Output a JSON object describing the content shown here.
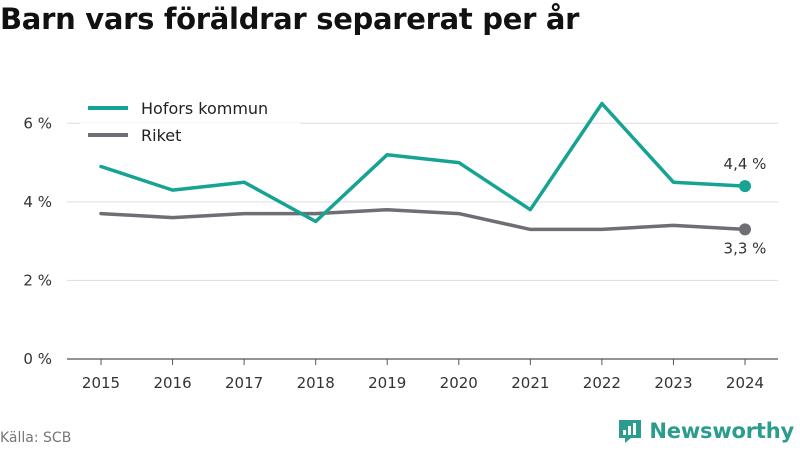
{
  "title": "Barn vars föräldrar separerat per år",
  "source": "Källa: SCB",
  "brand": {
    "name": "Newsworthy",
    "icon": "newsworthy-logo-icon",
    "color": "#2c9c8e"
  },
  "chart_data": {
    "type": "line",
    "x": [
      "2015",
      "2016",
      "2017",
      "2018",
      "2019",
      "2020",
      "2021",
      "2022",
      "2023",
      "2024"
    ],
    "series": [
      {
        "name": "Hofors kommun",
        "color": "#16a394",
        "values": [
          4.9,
          4.3,
          4.5,
          3.5,
          5.2,
          5.0,
          3.8,
          6.5,
          4.5,
          4.4
        ],
        "end_label": "4,4 %"
      },
      {
        "name": "Riket",
        "color": "#6e6e74",
        "values": [
          3.7,
          3.6,
          3.7,
          3.7,
          3.8,
          3.7,
          3.3,
          3.3,
          3.4,
          3.3
        ],
        "end_label": "3,3 %"
      }
    ],
    "yticks": [
      0,
      2,
      4,
      6
    ],
    "ytick_labels": [
      "0 %",
      "2 %",
      "4 %",
      "6 %"
    ],
    "ylim": [
      0,
      7
    ],
    "grid": true,
    "legend": "top-left"
  }
}
